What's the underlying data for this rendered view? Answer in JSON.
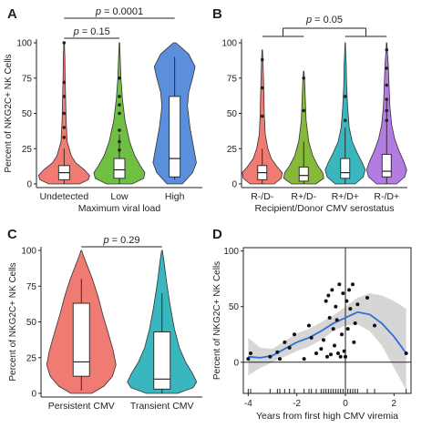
{
  "chart_data": [
    {
      "panel": "A",
      "type": "violin",
      "xlabel": "Maximum viral load",
      "ylabel": "Percent of NKG2C+ NK Cells",
      "ylim": [
        0,
        100
      ],
      "yticks": [
        0,
        25,
        50,
        75,
        100
      ],
      "categories": [
        "Undetected",
        "Low",
        "High"
      ],
      "colors": [
        "#f07b72",
        "#6fbf45",
        "#5b8fdc"
      ],
      "box": [
        {
          "q1": 3,
          "median": 8,
          "q3": 13,
          "lo": 0,
          "hi": 25
        },
        {
          "q1": 4,
          "median": 10,
          "q3": 18,
          "lo": 0,
          "hi": 35
        },
        {
          "q1": 5,
          "median": 18,
          "q3": 62,
          "lo": 3,
          "hi": 90
        }
      ],
      "comparisons": [
        {
          "from": "Undetected",
          "to": "Low",
          "label": "p = 0.15"
        },
        {
          "from": "Undetected",
          "to": "High",
          "label": "p = 0.0001"
        }
      ]
    },
    {
      "panel": "B",
      "type": "violin",
      "xlabel": "Recipient/Donor CMV serostatus",
      "ylabel": "",
      "ylim": [
        0,
        100
      ],
      "yticks": [
        0,
        25,
        50,
        75,
        100
      ],
      "categories": [
        "R-/D-",
        "R+/D-",
        "R+/D+",
        "R-/D+"
      ],
      "colors": [
        "#f07b72",
        "#86b83a",
        "#3ab6bf",
        "#b27ce0"
      ],
      "box": [
        {
          "q1": 3,
          "median": 8,
          "q3": 13,
          "lo": 0,
          "hi": 25
        },
        {
          "q1": 2,
          "median": 6,
          "q3": 12,
          "lo": 0,
          "hi": 30
        },
        {
          "q1": 4,
          "median": 8,
          "q3": 18,
          "lo": 0,
          "hi": 40
        },
        {
          "q1": 5,
          "median": 9,
          "q3": 21,
          "lo": 0,
          "hi": 60
        }
      ],
      "comparisons": [
        {
          "groupA": [
            "R-/D-",
            "R+/D-"
          ],
          "groupB": [
            "R+/D+",
            "R-/D+"
          ],
          "label": "p = 0.05"
        }
      ]
    },
    {
      "panel": "C",
      "type": "violin",
      "xlabel": "",
      "ylabel": "Percent of NKG2C+ NK Cells",
      "ylim": [
        0,
        100
      ],
      "yticks": [
        0,
        25,
        50,
        75,
        100
      ],
      "categories": [
        "Persistent CMV",
        "Transient CMV"
      ],
      "colors": [
        "#f07b72",
        "#3ab6bf"
      ],
      "box": [
        {
          "q1": 12,
          "median": 22,
          "q3": 63,
          "lo": 2,
          "hi": 80
        },
        {
          "q1": 3,
          "median": 10,
          "q3": 43,
          "lo": 0,
          "hi": 70
        }
      ],
      "comparisons": [
        {
          "from": "Persistent CMV",
          "to": "Transient CMV",
          "label": "p = 0.29"
        }
      ]
    },
    {
      "panel": "D",
      "type": "scatter",
      "xlabel": "Years from first high CMV viremia",
      "ylabel": "Percent of NKG2C+ NK Cells",
      "xlim": [
        -4.2,
        2.7
      ],
      "ylim": [
        -28,
        103
      ],
      "xticks": [
        -4,
        -2,
        0,
        2
      ],
      "yticks": [
        0,
        50,
        100
      ],
      "points": [
        [
          -4.0,
          3
        ],
        [
          -3.9,
          8
        ],
        [
          -3.1,
          5
        ],
        [
          -2.8,
          9
        ],
        [
          -2.7,
          3
        ],
        [
          -2.5,
          18
        ],
        [
          -2.3,
          13
        ],
        [
          -2.1,
          25
        ],
        [
          -1.7,
          3
        ],
        [
          -1.5,
          33
        ],
        [
          -1.4,
          22
        ],
        [
          -1.2,
          8
        ],
        [
          -1.0,
          12
        ],
        [
          -0.9,
          20
        ],
        [
          -0.8,
          55
        ],
        [
          -0.75,
          5
        ],
        [
          -0.7,
          60
        ],
        [
          -0.65,
          40
        ],
        [
          -0.6,
          7
        ],
        [
          -0.55,
          65
        ],
        [
          -0.5,
          30
        ],
        [
          -0.45,
          15
        ],
        [
          -0.4,
          50
        ],
        [
          -0.35,
          38
        ],
        [
          -0.3,
          8
        ],
        [
          -0.25,
          70
        ],
        [
          -0.2,
          5
        ],
        [
          -0.15,
          25
        ],
        [
          -0.1,
          62
        ],
        [
          -0.05,
          10
        ],
        [
          0.0,
          5
        ],
        [
          0.05,
          55
        ],
        [
          0.1,
          30
        ],
        [
          0.15,
          65
        ],
        [
          0.2,
          48
        ],
        [
          0.3,
          70
        ],
        [
          0.35,
          18
        ],
        [
          0.4,
          35
        ],
        [
          0.5,
          52
        ],
        [
          0.9,
          58
        ],
        [
          1.2,
          33
        ],
        [
          2.5,
          8
        ]
      ],
      "smooth": {
        "x": [
          -4.0,
          -3.5,
          -3.0,
          -2.5,
          -2.0,
          -1.5,
          -1.0,
          -0.5,
          0.0,
          0.5,
          1.0,
          1.5,
          2.0,
          2.5
        ],
        "y": [
          5,
          4,
          6,
          12,
          18,
          22,
          28,
          35,
          40,
          45,
          43,
          35,
          23,
          8
        ],
        "lo": [
          -12,
          -5,
          0,
          5,
          10,
          14,
          20,
          28,
          33,
          34,
          28,
          15,
          -5,
          -25
        ],
        "hi": [
          22,
          13,
          12,
          19,
          26,
          30,
          36,
          42,
          50,
          58,
          62,
          60,
          55,
          48
        ]
      },
      "rug_x": [
        -4.0,
        -3.9,
        -3.1,
        -2.8,
        -2.7,
        -2.5,
        -2.3,
        -2.1,
        -1.7,
        -1.5,
        -1.4,
        -1.2,
        -1.0,
        -0.9,
        -0.8,
        -0.7,
        -0.6,
        -0.5,
        -0.4,
        -0.3,
        -0.2,
        -0.1,
        0.0,
        0.1,
        0.2,
        0.3,
        0.4,
        0.5,
        0.9,
        1.2,
        2.5
      ]
    }
  ],
  "panels": {
    "A": {
      "letter": "A"
    },
    "B": {
      "letter": "B"
    },
    "C": {
      "letter": "C"
    },
    "D": {
      "letter": "D"
    }
  }
}
